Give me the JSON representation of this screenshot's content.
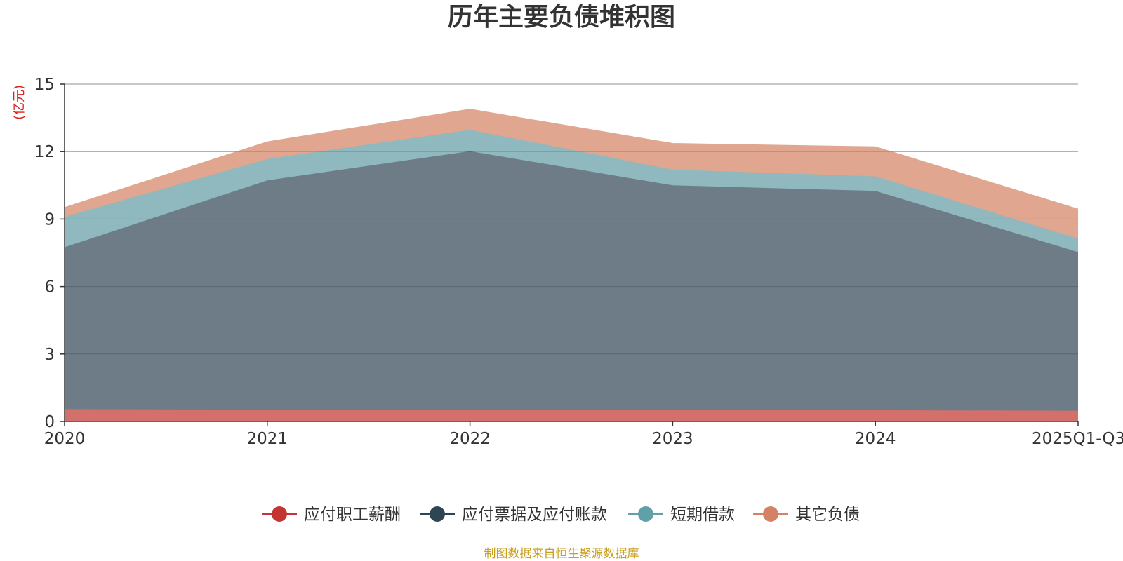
{
  "chart_data": {
    "type": "area",
    "stacked": true,
    "title": "历年主要负债堆积图",
    "ylabel": "(亿元)",
    "xlabel": "",
    "categories": [
      "2020",
      "2021",
      "2022",
      "2023",
      "2024",
      "2025Q1-Q3"
    ],
    "ylim": [
      0,
      15
    ],
    "yticks": [
      0,
      3,
      6,
      9,
      12,
      15
    ],
    "ytick_labels": [
      "0",
      "3",
      "6",
      "9",
      "12",
      "15"
    ],
    "grid": true,
    "legend_position": "bottom",
    "series": [
      {
        "name": "应付职工薪酬",
        "values": [
          0.55,
          0.52,
          0.52,
          0.5,
          0.5,
          0.48
        ],
        "color": "#c23531",
        "fill": "#d4706c"
      },
      {
        "name": "应付票据及应付账款",
        "values": [
          7.2,
          10.2,
          11.5,
          10.0,
          9.75,
          7.05
        ],
        "color": "#2f4554",
        "fill": "#6e7c87"
      },
      {
        "name": "短期借款",
        "values": [
          1.35,
          0.95,
          0.95,
          0.7,
          0.65,
          0.6
        ],
        "color": "#61a0a8",
        "fill": "#8fb9be"
      },
      {
        "name": "其它负债",
        "values": [
          0.4,
          0.75,
          0.9,
          1.15,
          1.3,
          1.3
        ],
        "color": "#d48265",
        "fill": "#e0a68f"
      }
    ],
    "source_note": "制图数据来自恒生聚源数据库"
  }
}
